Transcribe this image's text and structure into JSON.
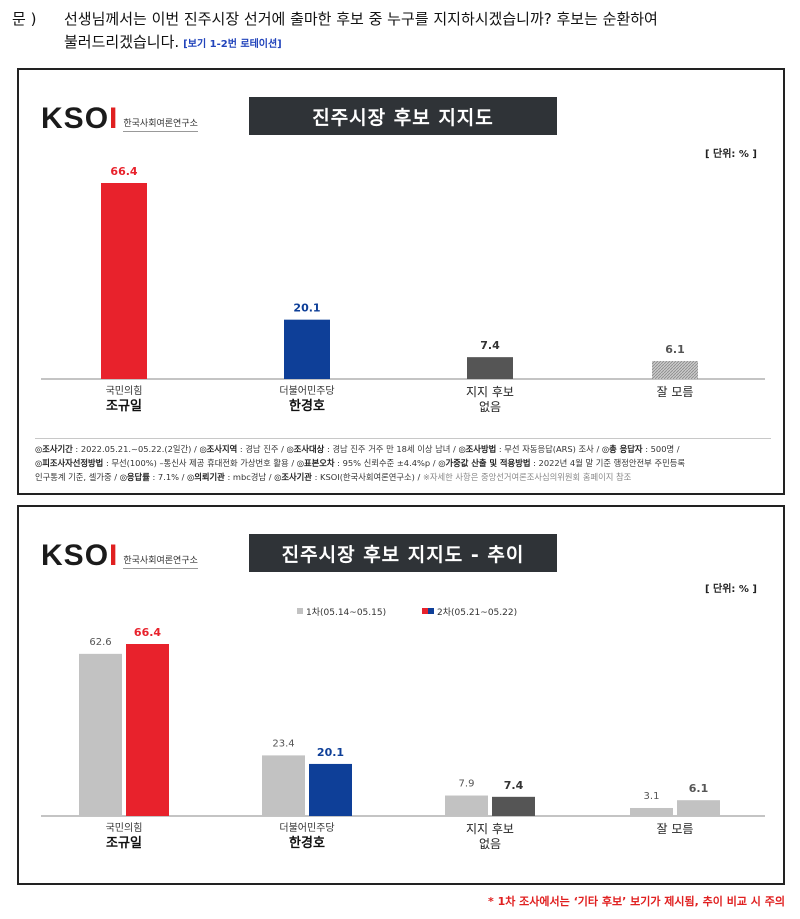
{
  "question": {
    "label": "문 )",
    "line1": "선생님께서는 이번 진주시장 선거에 출마한 후보 중 누구를 지지하시겠습니까? 후보는 순환하여",
    "line2": "불러드리겠습니다.",
    "note": "[보기 1-2번 로테이션]"
  },
  "logo": {
    "mark_text": "KSOI",
    "sub": "한국사회여론연구소"
  },
  "charts": {
    "current": {
      "title": "진주시장 후보 지지도",
      "unit": "[ 단위: % ]"
    },
    "trend": {
      "title": "진주시장 후보 지지도 - 추이",
      "unit": "[ 단위: % ]",
      "legend1": "1차(05.14~05.15)",
      "legend2": "2차(05.21~05.22)"
    }
  },
  "source": {
    "l1_k1": "◎조사기간",
    "l1_v1": " : 2022.05.21.~05.22.(2일간) / ",
    "l1_k2": "◎조사지역",
    "l1_v2": " : 경남 진주 / ",
    "l1_k3": "◎조사대상",
    "l1_v3": " : 경남 진주 거주 만 18세 이상 남녀 / ",
    "l1_k4": "◎조사방법",
    "l1_v4": " : 무선 자동응답(ARS) 조사 / ",
    "l1_k5": "◎총 응답자",
    "l1_v5": " : 500명 /",
    "l2_k1": "◎피조사자선정방법",
    "l2_v1": " : 무선(100%) –통신사 제공 휴대전화 가상번호 활용 / ",
    "l2_k2": "◎표본오차",
    "l2_v2": " : 95% 신뢰수준 ±4.4%p / ",
    "l2_k3": "◎가중값 산출 및 적용방법",
    "l2_v3": " : 2022년 4월 말 기준 행정안전부 주민등록",
    "l3_v0": "인구통계 기준, 셀가중 / ",
    "l3_k1": "◎응답률",
    "l3_v1": " : 7.1% / ",
    "l3_k2": "◎의뢰기관",
    "l3_v2": " : mbc경남 / ",
    "l3_k3": "◎조사기관",
    "l3_v3": " : KSOI(한국사회여론연구소) / ",
    "l3_v4": "※자세한 사항은 중앙선거여론조사심의위원회 홈페이지 참조"
  },
  "footnote": "* 1차 조사에서는 ‘기타 후보’ 보기가 제시됨, 추이 비교 시 주의",
  "colors": {
    "red": "#e8222c",
    "blue": "#0e3f98",
    "dark": "#555555",
    "gray": "#c2c2c2",
    "title_bg": "#2f3337"
  },
  "chart_data": [
    {
      "type": "bar",
      "title": "진주시장 후보 지지도",
      "categories": [
        {
          "party": "국민의힘",
          "name": "조규일"
        },
        {
          "party": "더불어민주당",
          "name": "한경호"
        },
        {
          "party": "",
          "name": "지지 후보 없음"
        },
        {
          "party": "",
          "name": "잘 모름"
        }
      ],
      "values": [
        66.4,
        20.1,
        7.4,
        6.1
      ],
      "value_labels": [
        "66.4",
        "20.1",
        "7.4",
        "6.1"
      ],
      "bar_colors": [
        "#e8222c",
        "#0e3f98",
        "#555555",
        "#b5b5b5"
      ],
      "label_colors": [
        "#e8222c",
        "#0e3f98",
        "#333333",
        "#555555"
      ],
      "ylim": [
        0,
        70
      ]
    },
    {
      "type": "bar",
      "title": "진주시장 후보 지지도 - 추이",
      "categories": [
        {
          "party": "국민의힘",
          "name": "조규일"
        },
        {
          "party": "더불어민주당",
          "name": "한경호"
        },
        {
          "party": "",
          "name": "지지 후보 없음"
        },
        {
          "party": "",
          "name": "잘 모름"
        }
      ],
      "series": [
        {
          "name": "1차(05.14~05.15)",
          "values": [
            62.6,
            23.4,
            7.9,
            3.1
          ],
          "labels": [
            "62.6",
            "23.4",
            "7.9",
            "3.1"
          ]
        },
        {
          "name": "2차(05.21~05.22)",
          "values": [
            66.4,
            20.1,
            7.4,
            6.1
          ],
          "labels": [
            "66.4",
            "20.1",
            "7.4",
            "6.1"
          ]
        }
      ],
      "series2_colors": [
        "#e8222c",
        "#0e3f98",
        "#555555",
        "#c2c2c2"
      ],
      "series2_label_colors": [
        "#e8222c",
        "#0e3f98",
        "#333333",
        "#555555"
      ],
      "ylim": [
        0,
        70
      ]
    }
  ]
}
